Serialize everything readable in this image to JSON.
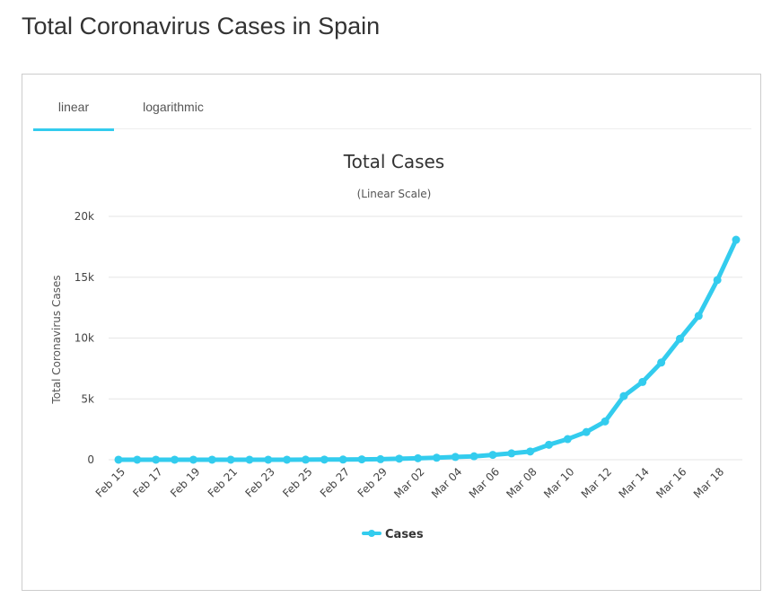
{
  "page": {
    "title": "Total Coronavirus Cases in Spain"
  },
  "tabs": [
    {
      "label": "linear",
      "active": true
    },
    {
      "label": "logarithmic",
      "active": false
    }
  ],
  "colors": {
    "series": "#33ccee",
    "tab_active": "#33ccee",
    "grid": "#e6e6e6"
  },
  "chart_data": {
    "type": "line",
    "title": "Total Cases",
    "subtitle": "(Linear Scale)",
    "ylabel": "Total Coronavirus Cases",
    "xlabel": "",
    "ylim": [
      0,
      20000
    ],
    "y_ticks": [
      "0",
      "5k",
      "10k",
      "15k",
      "20k"
    ],
    "y_tick_values": [
      0,
      5000,
      10000,
      15000,
      20000
    ],
    "grid": true,
    "legend": "bottom-center",
    "x_tick_labels": [
      "Feb 15",
      "Feb 17",
      "Feb 19",
      "Feb 21",
      "Feb 23",
      "Feb 25",
      "Feb 27",
      "Feb 29",
      "Mar 02",
      "Mar 04",
      "Mar 06",
      "Mar 08",
      "Mar 10",
      "Mar 12",
      "Mar 14",
      "Mar 16",
      "Mar 18"
    ],
    "x": [
      "Feb 15",
      "Feb 16",
      "Feb 17",
      "Feb 18",
      "Feb 19",
      "Feb 20",
      "Feb 21",
      "Feb 22",
      "Feb 23",
      "Feb 24",
      "Feb 25",
      "Feb 26",
      "Feb 27",
      "Feb 28",
      "Feb 29",
      "Mar 01",
      "Mar 02",
      "Mar 03",
      "Mar 04",
      "Mar 05",
      "Mar 06",
      "Mar 07",
      "Mar 08",
      "Mar 09",
      "Mar 10",
      "Mar 11",
      "Mar 12",
      "Mar 13",
      "Mar 14",
      "Mar 15",
      "Mar 16",
      "Mar 17",
      "Mar 18",
      "Mar 19"
    ],
    "series": [
      {
        "name": "Cases",
        "values": [
          2,
          2,
          2,
          2,
          2,
          2,
          2,
          2,
          2,
          2,
          6,
          13,
          15,
          32,
          45,
          84,
          120,
          165,
          228,
          282,
          401,
          525,
          674,
          1231,
          1695,
          2277,
          3146,
          5232,
          6391,
          7988,
          9942,
          11826,
          14769,
          18077
        ]
      }
    ]
  }
}
